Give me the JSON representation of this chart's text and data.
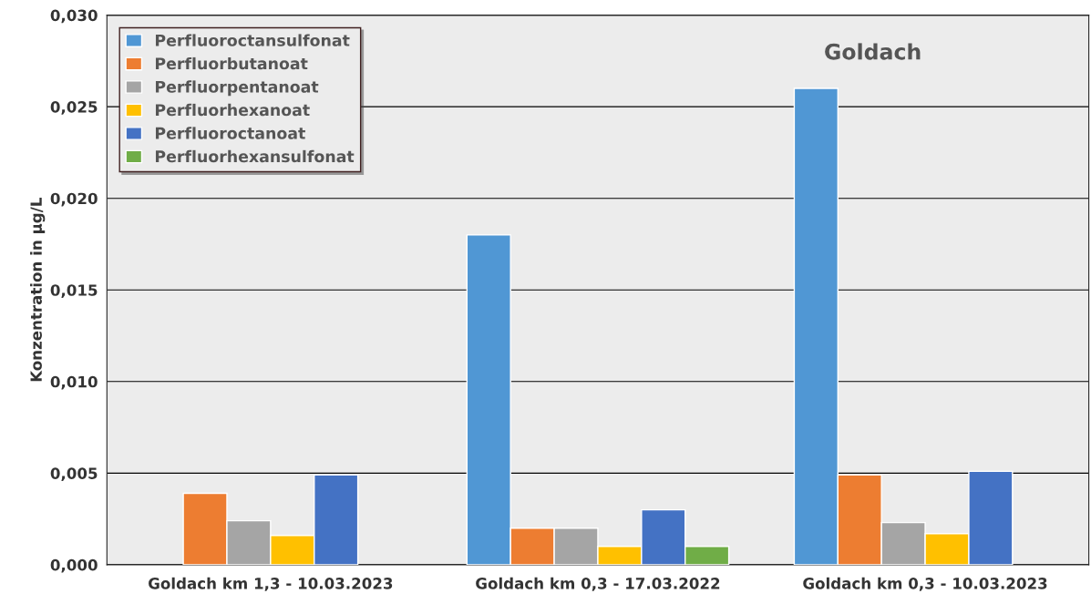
{
  "chart_data": {
    "type": "bar",
    "title": "Goldach",
    "ylabel": "Konzentration in µg/L",
    "categories": [
      "Goldach km 1,3 - 10.03.2023",
      "Goldach km 0,3 - 17.03.2022",
      "Goldach km 0,3 - 10.03.2023"
    ],
    "series": [
      {
        "name": "Perfluoroctansulfonat",
        "color": "#5097d4",
        "values": [
          null,
          0.018,
          0.026
        ]
      },
      {
        "name": "Perfluorbutanoat",
        "color": "#ed7d31",
        "values": [
          0.0039,
          0.002,
          0.0049
        ]
      },
      {
        "name": "Perfluorpentanoat",
        "color": "#a5a5a5",
        "values": [
          0.0024,
          0.002,
          0.0023
        ]
      },
      {
        "name": "Perfluorhexanoat",
        "color": "#ffc000",
        "values": [
          0.0016,
          0.001,
          0.0017
        ]
      },
      {
        "name": "Perfluoroctanoat",
        "color": "#4472c4",
        "values": [
          0.0049,
          0.003,
          0.0051
        ]
      },
      {
        "name": "Perfluorhexansulfonat",
        "color": "#70ad47",
        "values": [
          null,
          0.001,
          null
        ]
      }
    ],
    "ylim": [
      0,
      0.03
    ],
    "yticks": [
      {
        "value": 0,
        "label": "0,000"
      },
      {
        "value": 0.005,
        "label": "0,005"
      },
      {
        "value": 0.01,
        "label": "0,010"
      },
      {
        "value": 0.015,
        "label": "0,015"
      },
      {
        "value": 0.02,
        "label": "0,020"
      },
      {
        "value": 0.025,
        "label": "0,025"
      },
      {
        "value": 0.03,
        "label": "0,030"
      }
    ],
    "grid": "y",
    "legend": "top left"
  }
}
